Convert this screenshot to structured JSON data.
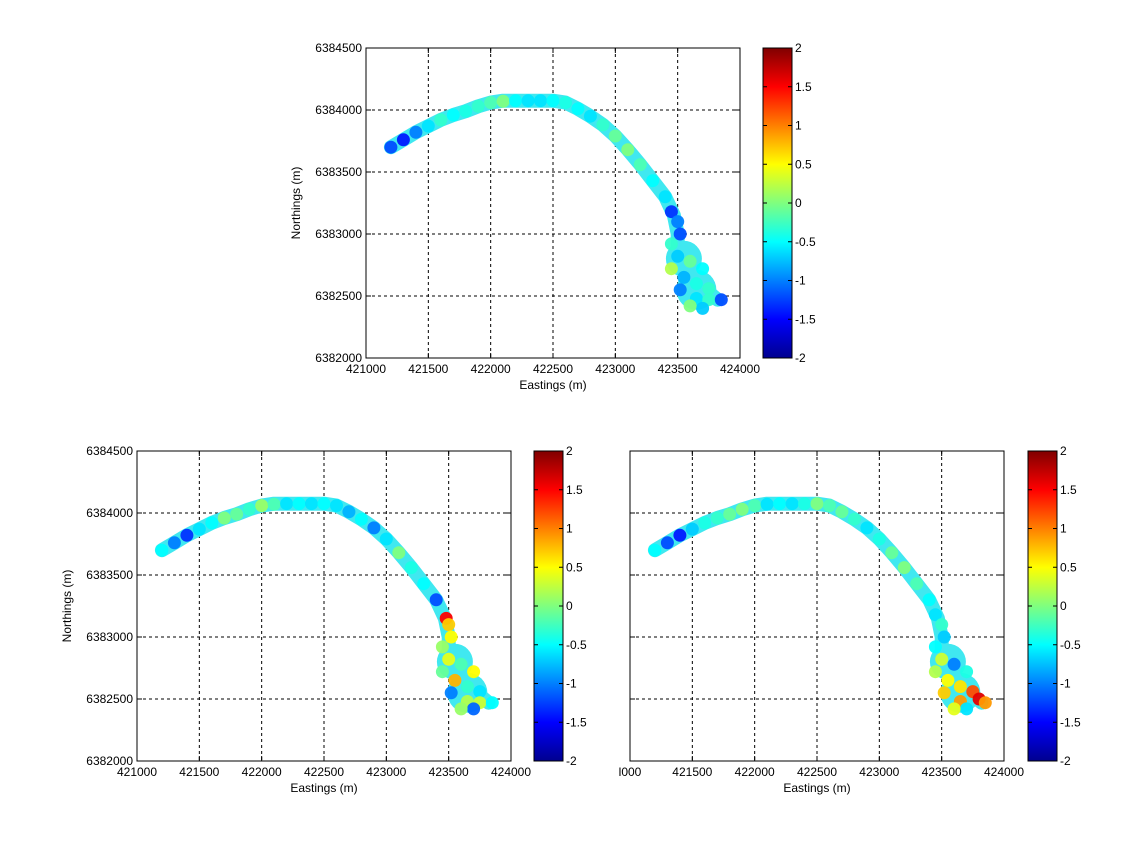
{
  "chart_data": [
    {
      "type": "heatmap",
      "panel": "top",
      "title": "",
      "xlabel": "Eastings (m)",
      "ylabel": "Northings (m)",
      "xlim": [
        421000,
        424000
      ],
      "ylim": [
        6382000,
        6384500
      ],
      "xticks": [
        "421000",
        "421500",
        "422000",
        "422500",
        "423000",
        "423500",
        "424000"
      ],
      "yticks": [
        "6382000",
        "6382500",
        "6383000",
        "6383500",
        "6384000",
        "6384500"
      ],
      "grid": true,
      "colorbar": {
        "range": [
          -2,
          2
        ],
        "ticks": [
          "-2",
          "-1.5",
          "-1",
          "-0.5",
          "0",
          "0.5",
          "1",
          "1.5",
          "2"
        ],
        "colormap": "jet"
      },
      "points": [
        [
          421200,
          6383700,
          -1.2
        ],
        [
          421300,
          6383760,
          -1.4
        ],
        [
          421400,
          6383820,
          -1.0
        ],
        [
          421500,
          6383870,
          -0.6
        ],
        [
          421600,
          6383920,
          -0.3
        ],
        [
          421700,
          6383960,
          -0.5
        ],
        [
          421800,
          6383990,
          -0.4
        ],
        [
          421900,
          6384030,
          -0.3
        ],
        [
          422000,
          6384060,
          -0.2
        ],
        [
          422100,
          6384070,
          0.0
        ],
        [
          422200,
          6384075,
          -0.5
        ],
        [
          422300,
          6384075,
          -0.6
        ],
        [
          422400,
          6384075,
          -0.6
        ],
        [
          422500,
          6384075,
          -0.5
        ],
        [
          422600,
          6384060,
          -0.4
        ],
        [
          422700,
          6384010,
          -0.5
        ],
        [
          422800,
          6383950,
          -0.6
        ],
        [
          422900,
          6383880,
          -0.3
        ],
        [
          423000,
          6383790,
          -0.1
        ],
        [
          423100,
          6383680,
          0.0
        ],
        [
          423200,
          6383560,
          -0.2
        ],
        [
          423300,
          6383430,
          -0.5
        ],
        [
          423400,
          6383300,
          -0.6
        ],
        [
          423450,
          6383180,
          -1.3
        ],
        [
          423500,
          6383100,
          -1.0
        ],
        [
          423520,
          6383000,
          -1.2
        ],
        [
          423450,
          6382920,
          -0.3
        ],
        [
          423500,
          6382820,
          -0.7
        ],
        [
          423600,
          6382780,
          -0.1
        ],
        [
          423700,
          6382720,
          -0.5
        ],
        [
          423450,
          6382720,
          0.2
        ],
        [
          423550,
          6382650,
          -0.8
        ],
        [
          423650,
          6382600,
          -0.4
        ],
        [
          423750,
          6382560,
          -0.3
        ],
        [
          423520,
          6382550,
          -1.0
        ],
        [
          423650,
          6382480,
          -0.6
        ],
        [
          423750,
          6382470,
          -0.3
        ],
        [
          423850,
          6382470,
          -1.2
        ],
        [
          423700,
          6382400,
          -0.7
        ],
        [
          423600,
          6382420,
          0.0
        ]
      ]
    },
    {
      "type": "heatmap",
      "panel": "bottom-left",
      "title": "",
      "xlabel": "Eastings (m)",
      "ylabel": "Northings (m)",
      "xlim": [
        421000,
        424000
      ],
      "ylim": [
        6382000,
        6384500
      ],
      "xticks": [
        "421000",
        "421500",
        "422000",
        "422500",
        "423000",
        "423500",
        "424000"
      ],
      "yticks": [
        "6382000",
        "6382500",
        "6383000",
        "6383500",
        "6384000",
        "6384500"
      ],
      "grid": true,
      "colorbar": {
        "range": [
          -2,
          2
        ],
        "ticks": [
          "-2",
          "-1.5",
          "-1",
          "-0.5",
          "0",
          "0.5",
          "1",
          "1.5",
          "2"
        ],
        "colormap": "jet"
      },
      "points": [
        [
          421200,
          6383700,
          -0.5
        ],
        [
          421300,
          6383760,
          -1.0
        ],
        [
          421400,
          6383820,
          -1.3
        ],
        [
          421500,
          6383870,
          -0.6
        ],
        [
          421600,
          6383920,
          -0.5
        ],
        [
          421700,
          6383960,
          0.0
        ],
        [
          421800,
          6383990,
          -0.1
        ],
        [
          421900,
          6384030,
          -0.3
        ],
        [
          422000,
          6384060,
          0.1
        ],
        [
          422100,
          6384070,
          -0.2
        ],
        [
          422200,
          6384075,
          -0.6
        ],
        [
          422300,
          6384075,
          -0.5
        ],
        [
          422400,
          6384075,
          -0.6
        ],
        [
          422500,
          6384075,
          -0.5
        ],
        [
          422600,
          6384060,
          -0.6
        ],
        [
          422700,
          6384010,
          -0.8
        ],
        [
          422800,
          6383950,
          -0.5
        ],
        [
          422900,
          6383880,
          -1.0
        ],
        [
          423000,
          6383790,
          -0.6
        ],
        [
          423100,
          6383680,
          0.0
        ],
        [
          423200,
          6383560,
          -0.4
        ],
        [
          423300,
          6383430,
          -0.5
        ],
        [
          423400,
          6383300,
          -1.2
        ],
        [
          423480,
          6383150,
          1.5
        ],
        [
          423500,
          6383100,
          0.7
        ],
        [
          423520,
          6383000,
          0.5
        ],
        [
          423450,
          6382920,
          0.1
        ],
        [
          423500,
          6382820,
          0.4
        ],
        [
          423600,
          6382780,
          -0.2
        ],
        [
          423700,
          6382720,
          0.5
        ],
        [
          423450,
          6382720,
          -0.1
        ],
        [
          423550,
          6382650,
          0.8
        ],
        [
          423650,
          6382600,
          -0.3
        ],
        [
          423750,
          6382560,
          -0.6
        ],
        [
          423520,
          6382550,
          -1.0
        ],
        [
          423650,
          6382480,
          0.2
        ],
        [
          423750,
          6382470,
          0.3
        ],
        [
          423850,
          6382470,
          -0.5
        ],
        [
          423700,
          6382420,
          -1.1
        ],
        [
          423600,
          6382420,
          0.1
        ]
      ]
    },
    {
      "type": "heatmap",
      "panel": "bottom-right",
      "title": "",
      "xlabel": "Eastings (m)",
      "ylabel": "",
      "xlim": [
        421000,
        424000
      ],
      "ylim": [
        6382000,
        6384500
      ],
      "xticks": [
        "l000",
        "421500",
        "422000",
        "422500",
        "423000",
        "423500",
        "424000"
      ],
      "yticks": [],
      "grid": true,
      "colorbar": {
        "range": [
          -2,
          2
        ],
        "ticks": [
          "-2",
          "-1.5",
          "-1",
          "-0.5",
          "0",
          "0.5",
          "1",
          "1.5",
          "2"
        ],
        "colormap": "jet"
      },
      "points": [
        [
          421200,
          6383700,
          -0.5
        ],
        [
          421300,
          6383760,
          -1.2
        ],
        [
          421400,
          6383820,
          -1.4
        ],
        [
          421500,
          6383870,
          -0.7
        ],
        [
          421600,
          6383920,
          -0.4
        ],
        [
          421700,
          6383960,
          -0.3
        ],
        [
          421800,
          6383990,
          -0.1
        ],
        [
          421900,
          6384030,
          0.0
        ],
        [
          422000,
          6384060,
          -0.2
        ],
        [
          422100,
          6384070,
          -0.6
        ],
        [
          422200,
          6384075,
          -0.5
        ],
        [
          422300,
          6384075,
          -0.6
        ],
        [
          422400,
          6384075,
          -0.4
        ],
        [
          422500,
          6384075,
          0.0
        ],
        [
          422600,
          6384060,
          -0.2
        ],
        [
          422700,
          6384010,
          -0.1
        ],
        [
          422800,
          6383950,
          -0.3
        ],
        [
          422900,
          6383880,
          -0.6
        ],
        [
          423000,
          6383790,
          -0.4
        ],
        [
          423100,
          6383680,
          -0.1
        ],
        [
          423200,
          6383560,
          0.0
        ],
        [
          423300,
          6383430,
          -0.2
        ],
        [
          423400,
          6383300,
          -0.5
        ],
        [
          423450,
          6383180,
          -0.6
        ],
        [
          423500,
          6383100,
          -0.3
        ],
        [
          423520,
          6383000,
          -0.7
        ],
        [
          423450,
          6382920,
          -0.5
        ],
        [
          423500,
          6382820,
          0.3
        ],
        [
          423600,
          6382780,
          -1.0
        ],
        [
          423700,
          6382720,
          -0.4
        ],
        [
          423450,
          6382720,
          0.2
        ],
        [
          423550,
          6382650,
          0.5
        ],
        [
          423650,
          6382600,
          0.6
        ],
        [
          423750,
          6382560,
          1.2
        ],
        [
          423520,
          6382550,
          0.7
        ],
        [
          423650,
          6382480,
          0.9
        ],
        [
          423800,
          6382500,
          1.6
        ],
        [
          423850,
          6382470,
          0.9
        ],
        [
          423700,
          6382420,
          -0.6
        ],
        [
          423600,
          6382420,
          0.4
        ]
      ]
    }
  ]
}
